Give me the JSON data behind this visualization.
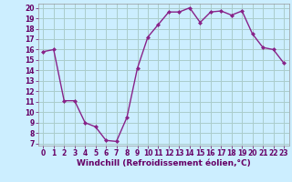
{
  "hours": [
    0,
    1,
    2,
    3,
    4,
    5,
    6,
    7,
    8,
    9,
    10,
    11,
    12,
    13,
    14,
    15,
    16,
    17,
    18,
    19,
    20,
    21,
    22,
    23
  ],
  "values": [
    15.8,
    16.0,
    11.1,
    11.1,
    9.0,
    8.6,
    7.3,
    7.2,
    9.5,
    14.2,
    17.2,
    18.4,
    19.6,
    19.6,
    20.0,
    18.6,
    19.6,
    19.7,
    19.3,
    19.7,
    17.5,
    16.2,
    16.0,
    14.7
  ],
  "line_color": "#882288",
  "marker": "D",
  "markersize": 2,
  "linewidth": 1.0,
  "bg_color": "#cceeff",
  "grid_color": "#aacccc",
  "xlabel": "Windchill (Refroidissement éolien,°C)",
  "xlabel_fontsize": 6.5,
  "ytick_min": 7,
  "ytick_max": 20,
  "xtick_labels": [
    "0",
    "1",
    "2",
    "3",
    "4",
    "5",
    "6",
    "7",
    "8",
    "9",
    "10",
    "11",
    "12",
    "13",
    "14",
    "15",
    "16",
    "17",
    "18",
    "19",
    "20",
    "21",
    "22",
    "23"
  ],
  "tick_fontsize": 5.5,
  "label_color": "#660066"
}
